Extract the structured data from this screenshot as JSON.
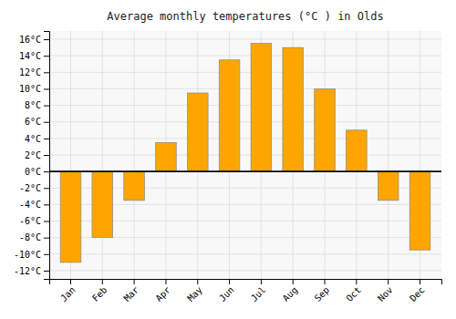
{
  "chart_data": {
    "type": "bar",
    "title": "Average monthly temperatures (°C ) in Olds",
    "categories": [
      "Jan",
      "Feb",
      "Mar",
      "Apr",
      "May",
      "Jun",
      "Jul",
      "Aug",
      "Sep",
      "Oct",
      "Nov",
      "Dec"
    ],
    "values": [
      -11,
      -8,
      -3.5,
      3.5,
      9.5,
      13.5,
      15.5,
      15,
      10,
      5,
      -3.5,
      -9.5
    ],
    "color": "#FFA500",
    "ylim": [
      -13,
      17
    ],
    "yticks": [
      {
        "value": -12,
        "label": "-12°C"
      },
      {
        "value": -10,
        "label": "-10°C"
      },
      {
        "value": -8,
        "label": "-8°C"
      },
      {
        "value": -6,
        "label": "-6°C"
      },
      {
        "value": -4,
        "label": "-4°C"
      },
      {
        "value": -2,
        "label": "-2°C"
      },
      {
        "value": 0,
        "label": "0°C"
      },
      {
        "value": 2,
        "label": "2°C"
      },
      {
        "value": 4,
        "label": "4°C"
      },
      {
        "value": 6,
        "label": "6°C"
      },
      {
        "value": 8,
        "label": "8°C"
      },
      {
        "value": 10,
        "label": "10°C"
      },
      {
        "value": 12,
        "label": "12°C"
      },
      {
        "value": 14,
        "label": "14°C"
      },
      {
        "value": 16,
        "label": "16°C"
      }
    ],
    "grid": true
  }
}
